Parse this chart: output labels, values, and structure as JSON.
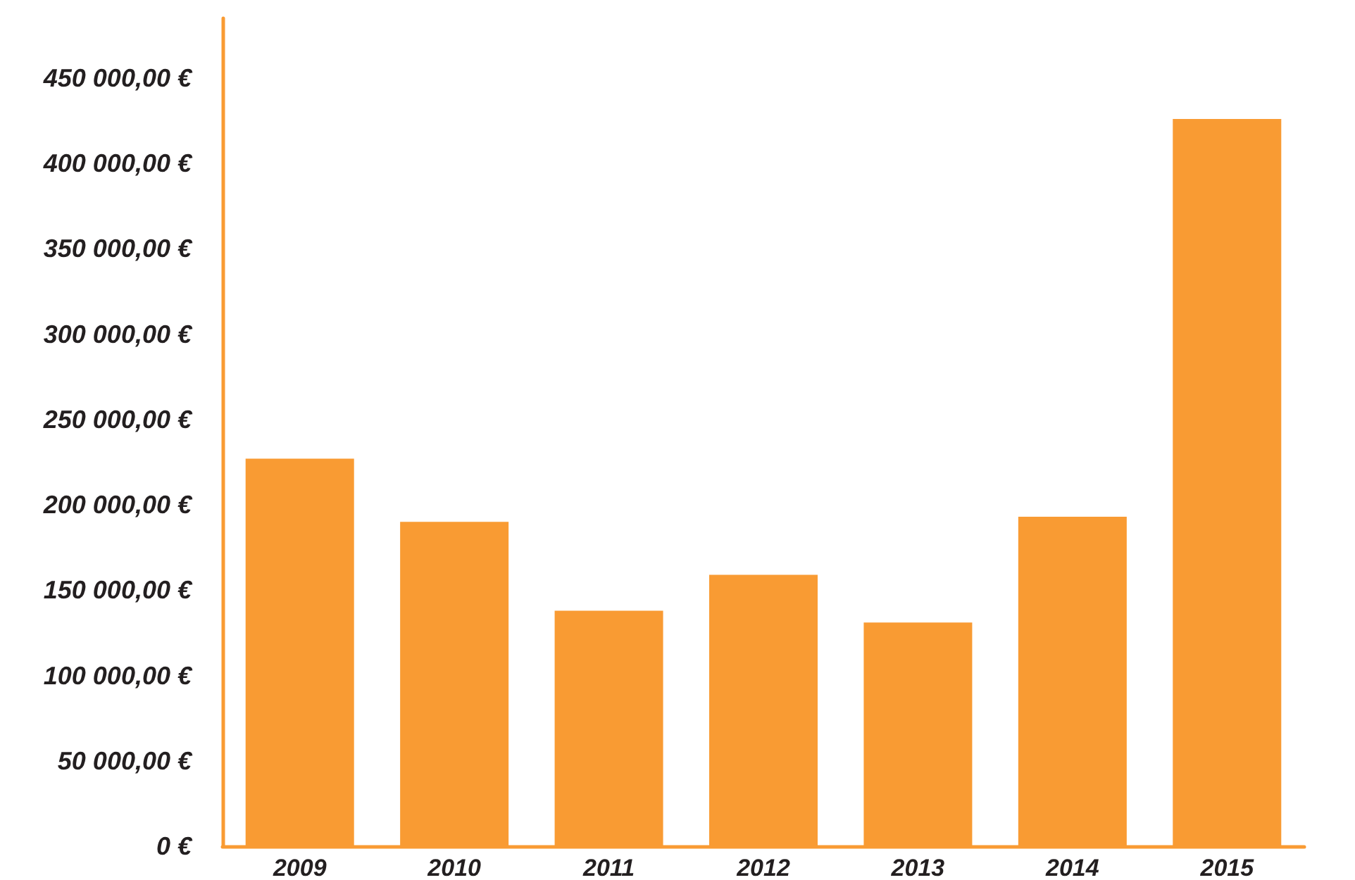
{
  "chart_data": {
    "type": "bar",
    "categories": [
      "2009",
      "2010",
      "2011",
      "2012",
      "2013",
      "2014",
      "2015"
    ],
    "values": [
      227000,
      190000,
      138000,
      159000,
      131000,
      193000,
      426000
    ],
    "color": "#f99b33",
    "ylim": [
      0,
      485000
    ],
    "yticks": [
      {
        "value": 0,
        "label": "0 €"
      },
      {
        "value": 50000,
        "label": "50 000,00 €"
      },
      {
        "value": 100000,
        "label": "100 000,00 €"
      },
      {
        "value": 150000,
        "label": "150 000,00 €"
      },
      {
        "value": 200000,
        "label": "200 000,00 €"
      },
      {
        "value": 250000,
        "label": "250 000,00 €"
      },
      {
        "value": 300000,
        "label": "300 000,00 €"
      },
      {
        "value": 350000,
        "label": "350 000,00 €"
      },
      {
        "value": 400000,
        "label": "400 000,00 €"
      },
      {
        "value": 450000,
        "label": "450 000,00 €"
      }
    ]
  }
}
